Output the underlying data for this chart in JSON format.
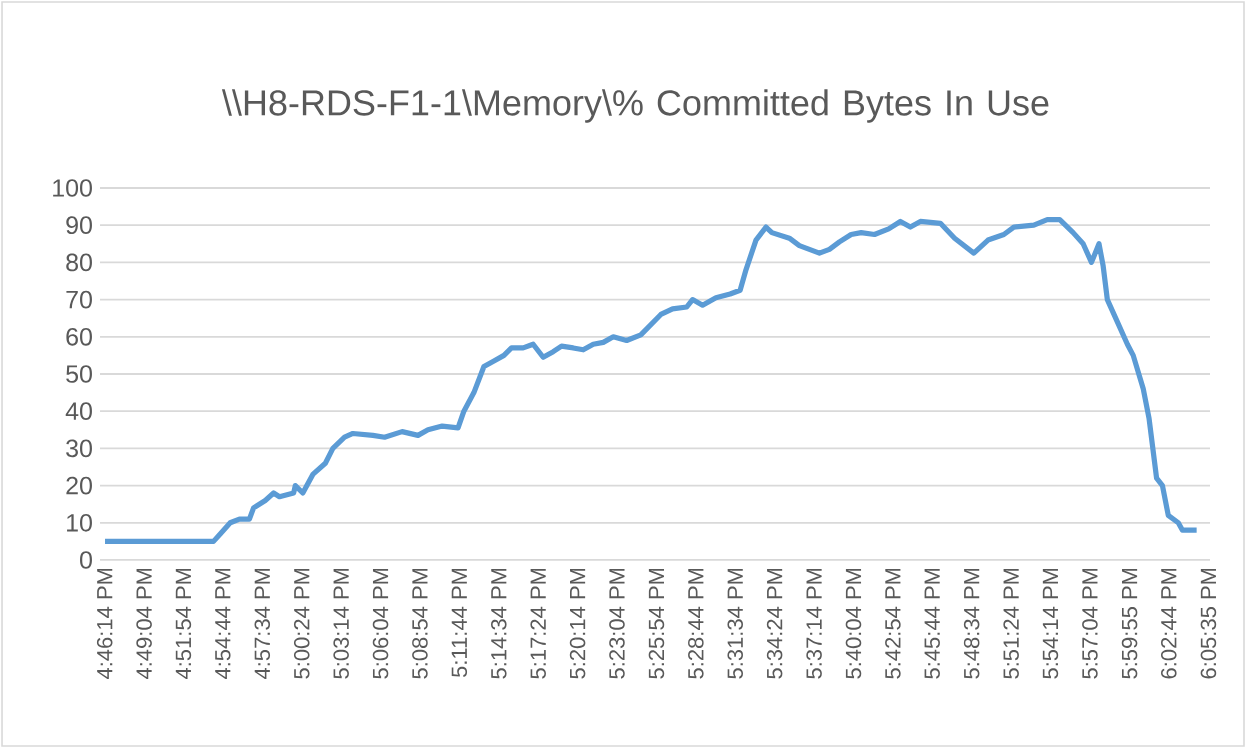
{
  "chart_data": {
    "type": "line",
    "title": "\\\\H8-RDS-F1-1\\Memory\\% Committed Bytes In Use",
    "series": [
      {
        "color": "#5b9bd5",
        "x": [
          16.771,
          16.901,
          16.909,
          16.921,
          16.932,
          16.944,
          16.949,
          16.963,
          16.973,
          16.98,
          16.997,
          16.999,
          17.008,
          17.02,
          17.035,
          17.044,
          17.058,
          17.068,
          17.092,
          17.106,
          17.127,
          17.146,
          17.158,
          17.175,
          17.194,
          17.201,
          17.213,
          17.225,
          17.237,
          17.249,
          17.258,
          17.272,
          17.284,
          17.296,
          17.308,
          17.318,
          17.332,
          17.344,
          17.356,
          17.368,
          17.38,
          17.396,
          17.413,
          17.437,
          17.451,
          17.468,
          17.475,
          17.487,
          17.503,
          17.52,
          17.532,
          17.539,
          17.551,
          17.563,
          17.57,
          17.591,
          17.603,
          17.627,
          17.639,
          17.651,
          17.665,
          17.677,
          17.693,
          17.71,
          17.724,
          17.736,
          17.748,
          17.772,
          17.789,
          17.812,
          17.829,
          17.848,
          17.86,
          17.884,
          17.9,
          17.915,
          17.931,
          17.943,
          17.953,
          17.962,
          17.967,
          17.972,
          17.984,
          17.996,
          18.003,
          18.015,
          18.022,
          18.031,
          18.038,
          18.045,
          18.057,
          18.062,
          18.079
        ],
        "values": [
          5,
          5,
          7,
          10,
          11,
          11,
          14,
          16,
          18,
          17,
          18,
          20,
          18,
          23,
          26,
          30,
          33,
          34,
          33.5,
          33,
          34.5,
          33.5,
          35,
          36,
          35.5,
          40,
          45,
          52,
          53.5,
          55,
          57,
          57,
          58,
          54.5,
          56,
          57.5,
          57,
          56.5,
          58,
          58.5,
          60,
          59,
          60.5,
          66,
          67.5,
          68,
          70,
          68.5,
          70.5,
          71.5,
          72.5,
          78,
          86,
          89.5,
          88,
          86.5,
          84.5,
          82.5,
          83.5,
          85.5,
          87.5,
          88,
          87.5,
          89,
          91,
          89.5,
          91,
          90.5,
          86.5,
          82.5,
          86,
          87.5,
          89.5,
          90,
          91.5,
          91.5,
          88,
          85,
          80,
          85,
          79,
          70,
          64,
          58,
          55,
          46,
          38,
          22,
          20,
          12,
          10,
          8,
          8
        ]
      }
    ],
    "xlim": [
      16.765,
      18.095
    ],
    "xticks": [
      {
        "value": 16.7706,
        "label": "4:46:14 PM"
      },
      {
        "value": 16.8178,
        "label": "4:49:04 PM"
      },
      {
        "value": 16.865,
        "label": "4:51:54 PM"
      },
      {
        "value": 16.9122,
        "label": "4:54:44 PM"
      },
      {
        "value": 16.9594,
        "label": "4:57:34 PM"
      },
      {
        "value": 17.0067,
        "label": "5:00:24 PM"
      },
      {
        "value": 17.0539,
        "label": "5:03:14 PM"
      },
      {
        "value": 17.1011,
        "label": "5:06:04 PM"
      },
      {
        "value": 17.1483,
        "label": "5:08:54 PM"
      },
      {
        "value": 17.1956,
        "label": "5:11:44 PM"
      },
      {
        "value": 17.2428,
        "label": "5:14:34 PM"
      },
      {
        "value": 17.29,
        "label": "5:17:24 PM"
      },
      {
        "value": 17.3372,
        "label": "5:20:14 PM"
      },
      {
        "value": 17.3844,
        "label": "5:23:04 PM"
      },
      {
        "value": 17.4317,
        "label": "5:25:54 PM"
      },
      {
        "value": 17.4789,
        "label": "5:28:44 PM"
      },
      {
        "value": 17.5261,
        "label": "5:31:34 PM"
      },
      {
        "value": 17.5733,
        "label": "5:34:24 PM"
      },
      {
        "value": 17.6206,
        "label": "5:37:14 PM"
      },
      {
        "value": 17.6678,
        "label": "5:40:04 PM"
      },
      {
        "value": 17.715,
        "label": "5:42:54 PM"
      },
      {
        "value": 17.7622,
        "label": "5:45:44 PM"
      },
      {
        "value": 17.8094,
        "label": "5:48:34 PM"
      },
      {
        "value": 17.8567,
        "label": "5:51:24 PM"
      },
      {
        "value": 17.9039,
        "label": "5:54:14 PM"
      },
      {
        "value": 17.9511,
        "label": "5:57:04 PM"
      },
      {
        "value": 17.9986,
        "label": "5:59:55 PM"
      },
      {
        "value": 18.0456,
        "label": "6:02:44 PM"
      },
      {
        "value": 18.0931,
        "label": "6:05:35 PM"
      }
    ],
    "ylim": [
      0,
      100
    ],
    "yticks": [
      0,
      10,
      20,
      30,
      40,
      50,
      60,
      70,
      80,
      90,
      100
    ],
    "grid": "y",
    "legend": false,
    "marker": "none",
    "line_style": "solid"
  }
}
